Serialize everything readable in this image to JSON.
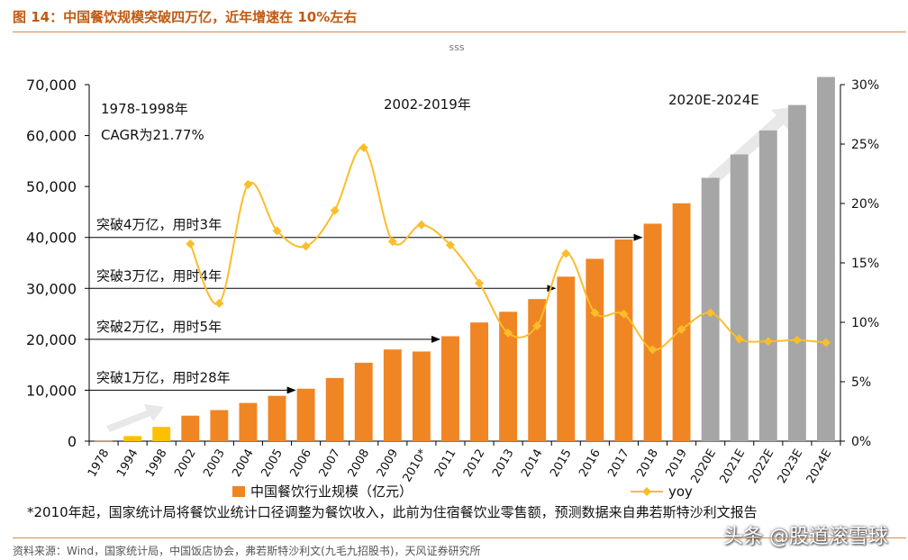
{
  "header": {
    "title": "图 14：中国餐饮规模突破四万亿，近年增速在 10%左右"
  },
  "footer": {
    "source": "资料来源：Wind，国家统计局，中国饭店协会，弗若斯特沙利文(九毛九招股书)，天风证券研究所",
    "watermark": "头条 @股道滚雪球"
  },
  "colors": {
    "accent": "#c05a12",
    "bar_actual": "#f08524",
    "bar_early": "#ffc000",
    "bar_forecast": "#a6a6a6",
    "line": "#fbbd2a"
  },
  "chart_data": {
    "type": "bar",
    "subtitle": "sss",
    "categories": [
      "1978",
      "1994",
      "1998",
      "2002",
      "2003",
      "2004",
      "2005",
      "2006",
      "2007",
      "2008",
      "2009",
      "2010*",
      "2011",
      "2012",
      "2013",
      "2014",
      "2015",
      "2016",
      "2017",
      "2018",
      "2019",
      "2020E",
      "2021E",
      "2022E",
      "2023E",
      "2024E"
    ],
    "series": [
      {
        "name": "中国餐饮行业规模（亿元）",
        "axis": "left",
        "values": [
          55,
          1000,
          2800,
          5000,
          6100,
          7500,
          8900,
          10300,
          12400,
          15400,
          18000,
          17600,
          20600,
          23300,
          25400,
          27900,
          32300,
          35800,
          39600,
          42700,
          46700,
          51700,
          56300,
          61000,
          66000,
          71500
        ]
      },
      {
        "name": "yoy",
        "axis": "right",
        "values": [
          null,
          null,
          null,
          16.6,
          11.6,
          21.6,
          17.7,
          16.4,
          19.4,
          24.7,
          16.8,
          18.2,
          16.5,
          13.3,
          9.1,
          9.7,
          15.8,
          10.8,
          10.7,
          7.7,
          9.4,
          10.8,
          8.6,
          8.4,
          8.5,
          8.3
        ]
      }
    ],
    "bar_groups": {
      "early": [
        1,
        2
      ],
      "forecast": [
        21,
        22,
        23,
        24,
        25
      ]
    },
    "y_left": {
      "min": 0,
      "max": 70000,
      "ticks": [
        "0",
        "10,000",
        "20,000",
        "30,000",
        "40,000",
        "50,000",
        "60,000",
        "70,000"
      ]
    },
    "y_right": {
      "min": 0,
      "max": 30,
      "ticks": [
        "0%",
        "5%",
        "10%",
        "15%",
        "20%",
        "25%",
        "30%"
      ]
    },
    "annotations": {
      "period_1_years": "1978-1998年",
      "period_1_cagr": "CAGR为21.77%",
      "period_2": "2002-2019年",
      "period_3": "2020E-2024E",
      "milestones": [
        {
          "text": "突破1万亿，用时28年",
          "value": 10000,
          "to": "2006"
        },
        {
          "text": "突破2万亿，用时5年",
          "value": 20000,
          "to": "2011"
        },
        {
          "text": "突破3万亿，用时4年",
          "value": 30000,
          "to": "2015"
        },
        {
          "text": "突破4万亿，用时3年",
          "value": 40000,
          "to": "2018"
        }
      ]
    },
    "legend": {
      "bar": "中国餐饮行业规模（亿元）",
      "line": "yoy",
      "position": "bottom"
    },
    "footnote": "*2010年起，国家统计局将餐饮业统计口径调整为餐饮收入，此前为住宿餐饮业零售额，预测数据来自弗若斯特沙利文报告",
    "grid": false
  }
}
